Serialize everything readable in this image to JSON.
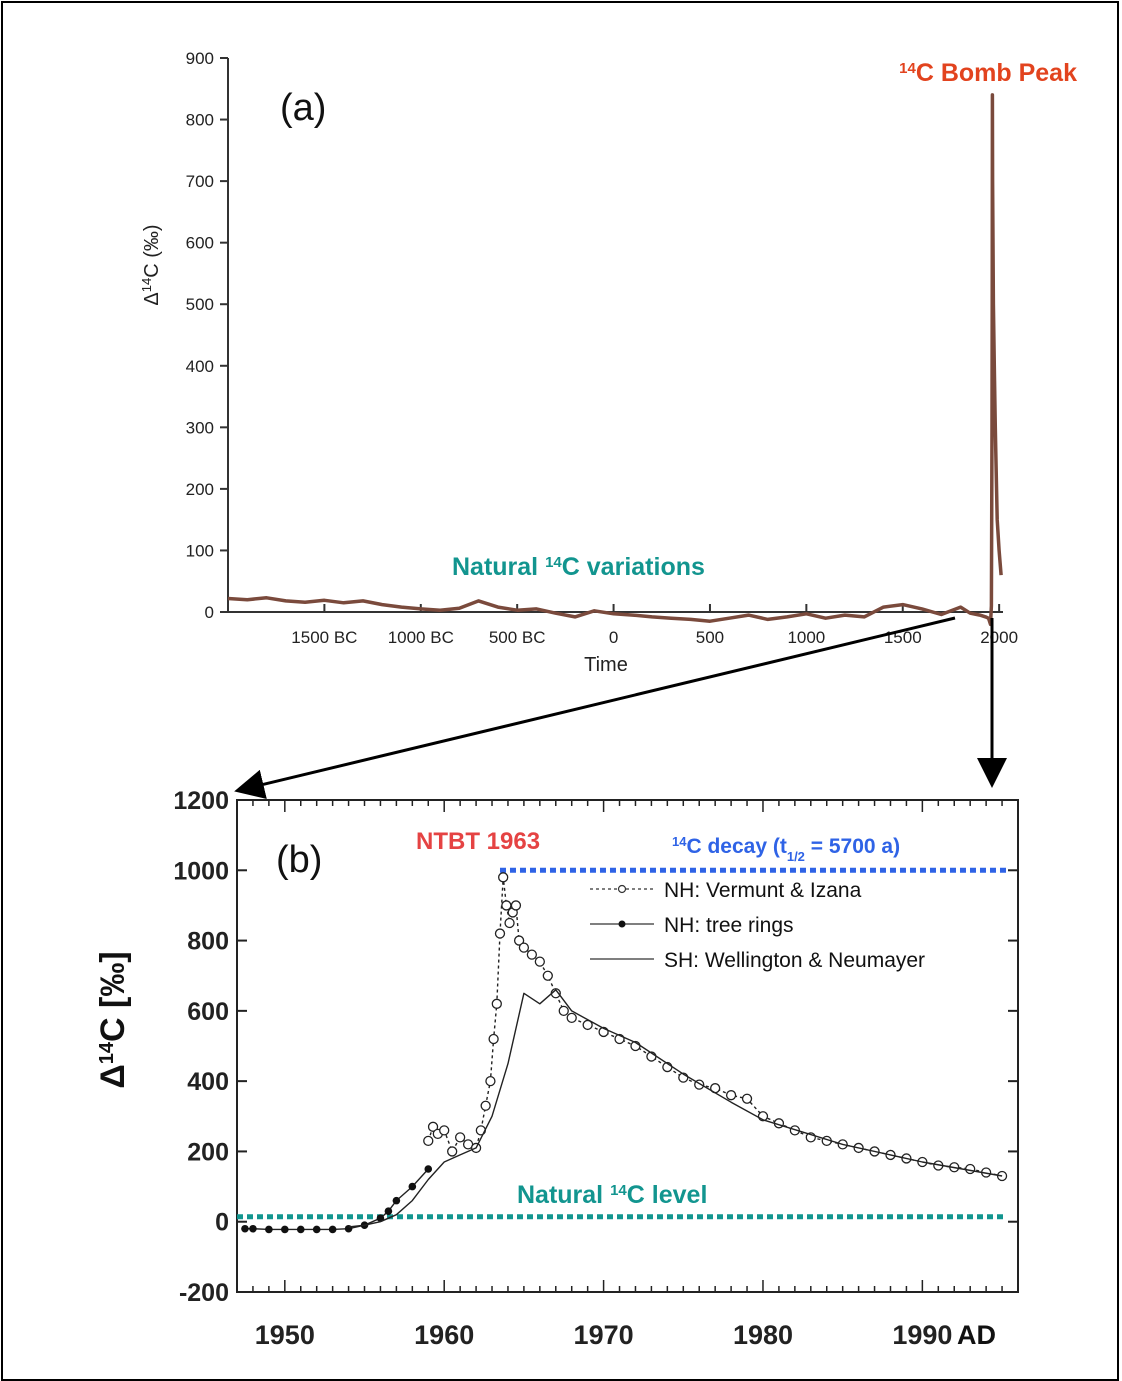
{
  "chart_data": [
    {
      "type": "line",
      "panel_label": "(a)",
      "xlabel": "Time",
      "ylabel_prefix": "Δ",
      "ylabel_sup": "14",
      "ylabel_suffix": "C (‰)",
      "ylim": [
        0,
        900
      ],
      "yticks": [
        0,
        100,
        200,
        300,
        400,
        500,
        600,
        700,
        800,
        900
      ],
      "xlim": [
        -2000,
        2020
      ],
      "xticks": [
        {
          "value": -1500,
          "label": "1500 BC"
        },
        {
          "value": -1000,
          "label": "1000 BC"
        },
        {
          "value": -500,
          "label": "500 BC"
        },
        {
          "value": 0,
          "label": "0"
        },
        {
          "value": 500,
          "label": "500"
        },
        {
          "value": 1000,
          "label": "1000"
        },
        {
          "value": 1500,
          "label": "1500"
        },
        {
          "value": 2000,
          "label": "2000"
        }
      ],
      "series": [
        {
          "color": "#7a4a3c",
          "x": [
            -2000,
            -1900,
            -1800,
            -1700,
            -1600,
            -1500,
            -1400,
            -1300,
            -1200,
            -1100,
            -1000,
            -900,
            -800,
            -700,
            -600,
            -500,
            -400,
            -300,
            -200,
            -100,
            0,
            100,
            200,
            300,
            400,
            500,
            600,
            700,
            800,
            900,
            1000,
            1100,
            1200,
            1300,
            1400,
            1500,
            1600,
            1700,
            1800,
            1850,
            1900,
            1930,
            1945,
            1950,
            1955,
            1960,
            1963,
            1964,
            1965,
            1966,
            1968,
            1970,
            1975,
            1980,
            1985,
            1990,
            2000,
            2005,
            2010
          ],
          "y": [
            22,
            20,
            23,
            18,
            16,
            19,
            15,
            18,
            12,
            8,
            5,
            3,
            6,
            18,
            8,
            3,
            5,
            -2,
            -8,
            2,
            -3,
            -5,
            -8,
            -10,
            -12,
            -15,
            -10,
            -5,
            -12,
            -8,
            -3,
            -10,
            -5,
            -8,
            8,
            12,
            5,
            -4,
            8,
            -2,
            -5,
            -8,
            -10,
            -15,
            -20,
            10,
            300,
            500,
            840,
            700,
            600,
            500,
            400,
            300,
            220,
            150,
            100,
            80,
            60
          ]
        }
      ],
      "annotations": [
        {
          "pre": "",
          "sup": "14",
          "post": "C Bomb Peak",
          "color": "#e2431e"
        },
        {
          "pre": "Natural ",
          "sup": "14",
          "post": "C variations",
          "color": "#12958f"
        }
      ]
    },
    {
      "type": "line",
      "panel_label": "(b)",
      "ylabel_prefix": "Δ",
      "ylabel_sup": "14",
      "ylabel_suffix": "C [‰]",
      "ylim": [
        -200,
        1200
      ],
      "yticks": [
        -200,
        0,
        200,
        400,
        600,
        800,
        1000,
        1200
      ],
      "xlim": [
        1947,
        1996
      ],
      "xticks": [
        1950,
        1960,
        1970,
        1980,
        1990
      ],
      "x_unit_label": "AD",
      "legend": [
        {
          "label": "NH: Vermunt & Izana"
        },
        {
          "label": "NH: tree rings"
        },
        {
          "label": "SH: Wellington & Neumayer"
        }
      ],
      "series": [
        {
          "name": "NH: Vermunt & Izana",
          "marker": "open-circle",
          "x": [
            1959,
            1959.3,
            1959.6,
            1960,
            1960.5,
            1961,
            1961.5,
            1962,
            1962.3,
            1962.6,
            1962.9,
            1963.1,
            1963.3,
            1963.5,
            1963.7,
            1963.9,
            1964.1,
            1964.3,
            1964.5,
            1964.7,
            1965,
            1965.5,
            1966,
            1966.5,
            1967,
            1967.5,
            1968,
            1969,
            1970,
            1971,
            1972,
            1973,
            1974,
            1975,
            1976,
            1977,
            1978,
            1979,
            1980,
            1981,
            1982,
            1983,
            1984,
            1985,
            1986,
            1987,
            1988,
            1989,
            1990,
            1991,
            1992,
            1993,
            1994,
            1995
          ],
          "y": [
            230,
            270,
            250,
            260,
            200,
            240,
            220,
            210,
            260,
            330,
            400,
            520,
            620,
            820,
            980,
            900,
            850,
            880,
            900,
            800,
            780,
            760,
            740,
            700,
            650,
            600,
            580,
            560,
            540,
            520,
            500,
            470,
            440,
            410,
            390,
            380,
            360,
            350,
            300,
            280,
            260,
            240,
            230,
            220,
            210,
            200,
            190,
            180,
            170,
            160,
            155,
            150,
            140,
            130
          ]
        },
        {
          "name": "NH: tree rings",
          "marker": "filled-circle",
          "x": [
            1947.5,
            1948,
            1949,
            1950,
            1951,
            1952,
            1953,
            1954,
            1955,
            1956,
            1956.5,
            1957,
            1958,
            1959
          ],
          "y": [
            -20,
            -20,
            -22,
            -22,
            -22,
            -22,
            -22,
            -20,
            -10,
            10,
            30,
            60,
            100,
            150
          ]
        },
        {
          "name": "SH: Wellington & Neumayer",
          "marker": "none",
          "x": [
            1954,
            1955,
            1956,
            1957,
            1958,
            1959,
            1960,
            1961,
            1962,
            1963,
            1964,
            1965,
            1966,
            1967,
            1968,
            1970,
            1972,
            1975,
            1978,
            1980,
            1985,
            1990,
            1995
          ],
          "y": [
            -15,
            -10,
            0,
            20,
            60,
            120,
            170,
            190,
            210,
            300,
            450,
            650,
            620,
            660,
            600,
            550,
            510,
            420,
            340,
            290,
            220,
            170,
            130
          ]
        }
      ],
      "reference_lines": [
        {
          "y": 1000,
          "x_start": 1963.5,
          "color": "#2f63e6"
        },
        {
          "y": 14,
          "x_start": 1947,
          "color": "#12958f"
        }
      ],
      "annotations": [
        {
          "text": "NTBT 1963",
          "color": "#e54343"
        },
        {
          "pre": "",
          "sup": "14",
          "post": "C decay  (t",
          "sub": "1/2",
          "post2": " = 5700 a)",
          "color": "#2f63e6"
        },
        {
          "pre": "Natural ",
          "sup": "14",
          "post": "C level",
          "color": "#12958f"
        }
      ]
    }
  ]
}
